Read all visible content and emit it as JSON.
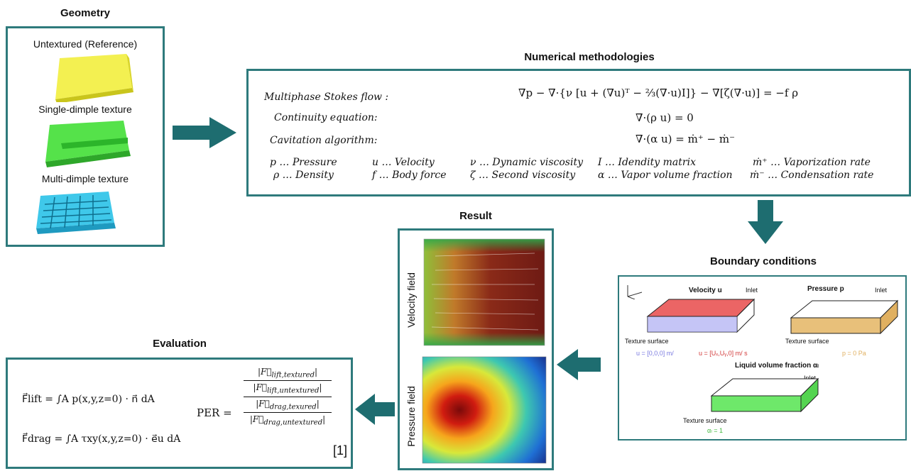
{
  "geometry": {
    "title": "Geometry",
    "items": [
      {
        "label": "Untextured (Reference)"
      },
      {
        "label": "Single-dimple texture"
      },
      {
        "label": "Multi-dimple texture"
      }
    ]
  },
  "numerical": {
    "title": "Numerical methodologies",
    "rows": [
      {
        "name": "Multiphase Stokes flow :",
        "eq": "∇p − ∇·{ν [u + (∇u)ᵀ − ⅔(∇·u)I]} − ∇[ζ(∇·u)] = −f ρ"
      },
      {
        "name": "Continuity equation:",
        "eq": "∇·(ρ u) = 0"
      },
      {
        "name": "Cavitation algorithm:",
        "eq": "∇·(α u) = ṁ⁺ − ṁ⁻"
      }
    ],
    "legend": [
      [
        "p … Pressure",
        "ρ … Density"
      ],
      [
        "u … Velocity",
        "f … Body force"
      ],
      [
        "ν … Dynamic viscosity",
        "ζ … Second viscosity"
      ],
      [
        "I … Idendity matrix",
        "α … Vapor volume fraction"
      ],
      [
        "ṁ⁺ … Vaporization rate",
        "ṁ⁻ … Condensation rate"
      ]
    ]
  },
  "result": {
    "title": "Result",
    "velocity_label": "Velocity field",
    "pressure_label": "Pressure field"
  },
  "boundary": {
    "title": "Boundary conditions",
    "velocity_title": "Velocity u",
    "pressure_title": "Pressure p",
    "inlet": "Inlet",
    "texture_surface": "Texture surface",
    "u_wall": "u = [0,0,0] m/",
    "u_inlet": "u = [Uₓ,Uᵧ,0] m/ s",
    "p_val": "p = 0 Pa",
    "liquid_title": "Liquid volume fraction αₗ",
    "alpha_val": "αₗ = 1"
  },
  "evaluation": {
    "title": "Evaluation",
    "lift": "F⃗lift = ∫A p(x,y,z=0) · n⃗ dA",
    "drag": "F⃗drag = ∫A τxy(x,y,z=0) · e⃗u dA",
    "per": "PER =",
    "ref": "[1]"
  }
}
